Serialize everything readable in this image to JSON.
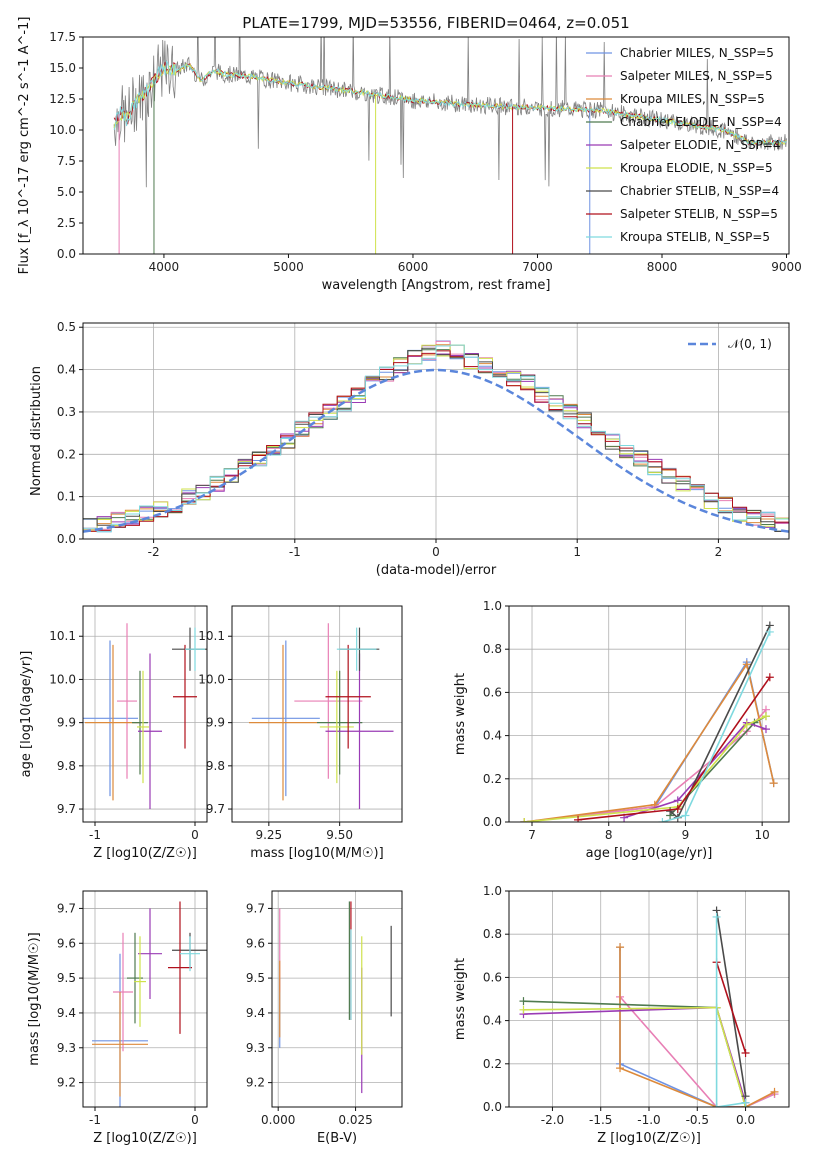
{
  "figure": {
    "title": "PLATE=1799, MJD=53556, FIBERID=0464, z=0.051"
  },
  "palette": [
    "#6f93e3",
    "#e87fb5",
    "#dd8a3b",
    "#4f7a4f",
    "#9a3bb5",
    "#cfe24c",
    "#4a4a4a",
    "#b0101c",
    "#7fd9df"
  ],
  "series_names": [
    "Chabrier MILES, N_SSP=5",
    "Salpeter MILES, N_SSP=5",
    "Kroupa MILES, N_SSP=5",
    "Chabrier ELODIE, N_SSP=4",
    "Salpeter ELODIE, N_SSP=4",
    "Kroupa ELODIE, N_SSP=5",
    "Chabrier STELIB, N_SSP=4",
    "Salpeter STELIB, N_SSP=5",
    "Kroupa STELIB, N_SSP=5"
  ],
  "chart_data": [
    {
      "id": "spectrum",
      "type": "line",
      "xlabel": "wavelength [Angstrom, rest frame]",
      "ylabel": "Flux [f_λ 10^-17 erg cm^-2 s^-1 A^-1]",
      "xlim": [
        3350,
        9020
      ],
      "ylim": [
        0,
        17.5
      ],
      "xticks": [
        4000,
        5000,
        6000,
        7000,
        8000,
        9000
      ],
      "yticks": [
        0.0,
        2.5,
        5.0,
        7.5,
        10.0,
        12.5,
        15.0,
        17.5
      ],
      "legend_position": "upper right",
      "continuum": {
        "x": [
          3600,
          3650,
          3700,
          3750,
          3800,
          3850,
          3900,
          3950,
          4000,
          4100,
          4200,
          4300,
          4400,
          4500,
          4700,
          5000,
          5300,
          5600,
          6000,
          6500,
          7000,
          7500,
          8000,
          8500,
          8700
        ],
        "y": [
          10.5,
          11.5,
          10.8,
          12.0,
          12.5,
          13.0,
          13.8,
          14.5,
          15.0,
          14.8,
          15.3,
          14.0,
          14.8,
          14.5,
          14.3,
          13.8,
          13.4,
          13.0,
          12.4,
          12.0,
          11.8,
          11.6,
          10.8,
          10.0,
          9.0
        ]
      },
      "absorption_features": [
        {
          "x": 3640,
          "y": 0.0
        },
        {
          "x": 3920,
          "y": 0.0
        },
        {
          "x": 5700,
          "y": 0.0
        },
        {
          "x": 6800,
          "y": 0.0
        },
        {
          "x": 7420,
          "y": 0.0
        }
      ]
    },
    {
      "id": "residuals",
      "type": "step-histogram",
      "xlabel": "(data-model)/error",
      "ylabel": "Normed distribution",
      "xlim": [
        -2.5,
        2.5
      ],
      "ylim": [
        0,
        0.51
      ],
      "xticks": [
        -2,
        -1,
        0,
        1,
        2
      ],
      "yticks": [
        0.0,
        0.1,
        0.2,
        0.3,
        0.4,
        0.5
      ],
      "reference_curve": "N(0,1)",
      "reference_label": "𝒩(0, 1)",
      "bin_width": 0.1,
      "bin_values": [
        0.02,
        0.025,
        0.03,
        0.035,
        0.045,
        0.05,
        0.06,
        0.07,
        0.08,
        0.1,
        0.11,
        0.13,
        0.15,
        0.17,
        0.19,
        0.21,
        0.23,
        0.26,
        0.28,
        0.3,
        0.32,
        0.34,
        0.37,
        0.39,
        0.41,
        0.43,
        0.44,
        0.45,
        0.44,
        0.42,
        0.41,
        0.4,
        0.38,
        0.37,
        0.34,
        0.32,
        0.3,
        0.28,
        0.25,
        0.23,
        0.21,
        0.19,
        0.17,
        0.15,
        0.13,
        0.11,
        0.09,
        0.08,
        0.06,
        0.05,
        0.045,
        0.035,
        0.03,
        0.025,
        0.02
      ]
    },
    {
      "id": "age_vs_Z",
      "type": "errorbar",
      "xlabel": "Z [log10(Z/Z☉)]",
      "ylabel": "age [log10(age/yr)]",
      "xlim": [
        -1.12,
        0.12
      ],
      "ylim": [
        9.67,
        10.17
      ],
      "xticks": [
        -1,
        0
      ],
      "yticks": [
        9.7,
        9.8,
        9.9,
        10.0,
        10.1
      ],
      "points": [
        {
          "x": -0.85,
          "xerr": 0.28,
          "y": 9.91,
          "yerr": 0.18
        },
        {
          "x": -0.68,
          "xerr": 0.1,
          "y": 9.95,
          "yerr": 0.18
        },
        {
          "x": -0.82,
          "xerr": 0.28,
          "y": 9.9,
          "yerr": 0.18
        },
        {
          "x": -0.55,
          "xerr": 0.08,
          "y": 9.9,
          "yerr": 0.12
        },
        {
          "x": -0.45,
          "xerr": 0.12,
          "y": 9.88,
          "yerr": 0.18
        },
        {
          "x": -0.52,
          "xerr": 0.06,
          "y": 9.89,
          "yerr": 0.13
        },
        {
          "x": -0.05,
          "xerr": 0.18,
          "y": 10.07,
          "yerr": 0.05
        },
        {
          "x": -0.1,
          "xerr": 0.12,
          "y": 9.96,
          "yerr": 0.12
        },
        {
          "x": 0.0,
          "xerr": 0.1,
          "y": 10.07,
          "yerr": 0.05
        }
      ]
    },
    {
      "id": "age_vs_mass",
      "type": "errorbar",
      "xlabel": "mass [log10(M/M☉)]",
      "ylabel": "",
      "xlim": [
        9.12,
        9.72
      ],
      "ylim": [
        9.67,
        10.17
      ],
      "xticks": [
        9.25,
        9.5
      ],
      "yticks": [
        9.7,
        9.8,
        9.9,
        10.0,
        10.1
      ],
      "points": [
        {
          "x": 9.31,
          "xerr": 0.12,
          "y": 9.91,
          "yerr": 0.18
        },
        {
          "x": 9.46,
          "xerr": 0.12,
          "y": 9.95,
          "yerr": 0.18
        },
        {
          "x": 9.3,
          "xerr": 0.12,
          "y": 9.9,
          "yerr": 0.18
        },
        {
          "x": 9.5,
          "xerr": 0.08,
          "y": 9.9,
          "yerr": 0.12
        },
        {
          "x": 9.57,
          "xerr": 0.12,
          "y": 9.88,
          "yerr": 0.18
        },
        {
          "x": 9.49,
          "xerr": 0.06,
          "y": 9.89,
          "yerr": 0.13
        },
        {
          "x": 9.57,
          "xerr": 0.07,
          "y": 10.07,
          "yerr": 0.05
        },
        {
          "x": 9.53,
          "xerr": 0.08,
          "y": 9.96,
          "yerr": 0.12
        },
        {
          "x": 9.56,
          "xerr": 0.07,
          "y": 10.07,
          "yerr": 0.05
        }
      ]
    },
    {
      "id": "massweight_vs_age",
      "type": "line",
      "xlabel": "age [log10(age/yr)]",
      "ylabel": "mass weight",
      "xlim": [
        6.7,
        10.35
      ],
      "ylim": [
        0,
        1.0
      ],
      "xticks": [
        7,
        8,
        9,
        10
      ],
      "yticks": [
        0.0,
        0.2,
        0.4,
        0.6,
        0.8,
        1.0
      ],
      "series": [
        {
          "x": [
            6.9,
            8.6,
            9.8,
            10.15
          ],
          "y": [
            0.0,
            0.07,
            0.74,
            0.18
          ]
        },
        {
          "x": [
            6.9,
            8.6,
            9.8,
            10.05
          ],
          "y": [
            0.0,
            0.07,
            0.42,
            0.52
          ]
        },
        {
          "x": [
            6.9,
            8.6,
            9.8,
            10.15
          ],
          "y": [
            0.0,
            0.08,
            0.73,
            0.18
          ]
        },
        {
          "x": [
            8.8,
            9.9,
            10.05
          ],
          "y": [
            0.03,
            0.46,
            0.49
          ]
        },
        {
          "x": [
            8.2,
            8.9,
            9.8,
            10.05
          ],
          "y": [
            0.02,
            0.1,
            0.46,
            0.43
          ]
        },
        {
          "x": [
            6.9,
            8.9,
            9.8,
            10.05
          ],
          "y": [
            0.0,
            0.07,
            0.45,
            0.49
          ]
        },
        {
          "x": [
            8.8,
            8.9,
            10.1
          ],
          "y": [
            0.05,
            0.02,
            0.91
          ]
        },
        {
          "x": [
            7.6,
            8.9,
            10.1
          ],
          "y": [
            0.01,
            0.06,
            0.67
          ]
        },
        {
          "x": [
            8.7,
            9.0,
            10.1
          ],
          "y": [
            0.0,
            0.03,
            0.88
          ]
        }
      ]
    },
    {
      "id": "mass_vs_Z",
      "type": "errorbar",
      "xlabel": "Z [log10(Z/Z☉)]",
      "ylabel": "mass [log10(M/M☉)]",
      "xlim": [
        -1.12,
        0.12
      ],
      "ylim": [
        9.13,
        9.75
      ],
      "xticks": [
        -1,
        0
      ],
      "yticks": [
        9.2,
        9.3,
        9.4,
        9.5,
        9.6,
        9.7
      ],
      "points": [
        {
          "x": -0.75,
          "xerr": 0.28,
          "y": 9.32,
          "yerr": 0.25
        },
        {
          "x": -0.72,
          "xerr": 0.1,
          "y": 9.46,
          "yerr": 0.17
        },
        {
          "x": -0.75,
          "xerr": 0.28,
          "y": 9.31,
          "yerr": 0.15
        },
        {
          "x": -0.6,
          "xerr": 0.08,
          "y": 9.5,
          "yerr": 0.13
        },
        {
          "x": -0.45,
          "xerr": 0.12,
          "y": 9.57,
          "yerr": 0.13
        },
        {
          "x": -0.55,
          "xerr": 0.06,
          "y": 9.49,
          "yerr": 0.13
        },
        {
          "x": -0.05,
          "xerr": 0.18,
          "y": 9.58,
          "yerr": 0.05
        },
        {
          "x": -0.15,
          "xerr": 0.12,
          "y": 9.53,
          "yerr": 0.19
        },
        {
          "x": -0.05,
          "xerr": 0.1,
          "y": 9.57,
          "yerr": 0.05
        }
      ]
    },
    {
      "id": "mass_vs_ebv",
      "type": "errorbar",
      "xlabel": "E(B-V)",
      "ylabel": "",
      "xlim": [
        -0.002,
        0.04
      ],
      "ylim": [
        9.13,
        9.75
      ],
      "xticks": [
        0.0,
        0.025
      ],
      "xticklabels": [
        "0.000",
        "0.025"
      ],
      "yticks": [
        9.2,
        9.3,
        9.4,
        9.5,
        9.6,
        9.7
      ],
      "points": [
        {
          "x": 0.0005,
          "y": 9.4,
          "yerr": 0.1
        },
        {
          "x": 0.0005,
          "y": 9.58,
          "yerr": 0.12
        },
        {
          "x": 0.0005,
          "y": 9.44,
          "yerr": 0.11
        },
        {
          "x": 0.023,
          "y": 9.55,
          "yerr": 0.17
        },
        {
          "x": 0.027,
          "y": 9.35,
          "yerr": 0.18
        },
        {
          "x": 0.027,
          "y": 9.45,
          "yerr": 0.17
        },
        {
          "x": 0.0365,
          "y": 9.52,
          "yerr": 0.13
        },
        {
          "x": 0.0235,
          "y": 9.55,
          "yerr": 0.17
        },
        {
          "x": 0.0235,
          "y": 9.51,
          "yerr": 0.13
        }
      ]
    },
    {
      "id": "massweight_vs_Z",
      "type": "line",
      "xlabel": "Z [log10(Z/Z☉)]",
      "ylabel": "mass weight",
      "xlim": [
        -2.45,
        0.45
      ],
      "ylim": [
        0,
        1.0
      ],
      "xticks": [
        -2.0,
        -1.5,
        -1.0,
        -0.5,
        0.0
      ],
      "yticks": [
        0.0,
        0.2,
        0.4,
        0.6,
        0.8,
        1.0
      ],
      "series": [
        {
          "x": [
            -1.3,
            -1.3,
            -0.3,
            0.0,
            0.3
          ],
          "y": [
            0.74,
            0.2,
            0.0,
            0.0,
            0.06
          ]
        },
        {
          "x": [
            -1.3,
            -0.3,
            0.0,
            0.3
          ],
          "y": [
            0.51,
            0.0,
            0.0,
            0.06
          ]
        },
        {
          "x": [
            -1.3,
            -1.3,
            -0.3,
            0.0,
            0.3
          ],
          "y": [
            0.74,
            0.18,
            0.0,
            0.0,
            0.07
          ]
        },
        {
          "x": [
            -2.3,
            -0.3,
            0.0
          ],
          "y": [
            0.49,
            0.46,
            0.0
          ]
        },
        {
          "x": [
            -2.3,
            -0.3,
            0.0
          ],
          "y": [
            0.43,
            0.46,
            0.02
          ]
        },
        {
          "x": [
            -2.3,
            -0.3,
            0.0
          ],
          "y": [
            0.45,
            0.46,
            0.0
          ]
        },
        {
          "x": [
            -0.3,
            0.0
          ],
          "y": [
            0.91,
            0.05
          ]
        },
        {
          "x": [
            -0.3,
            0.0
          ],
          "y": [
            0.67,
            0.25
          ]
        },
        {
          "x": [
            -0.3,
            -0.3,
            0.0
          ],
          "y": [
            0.88,
            0.0,
            0.02
          ]
        }
      ]
    }
  ]
}
